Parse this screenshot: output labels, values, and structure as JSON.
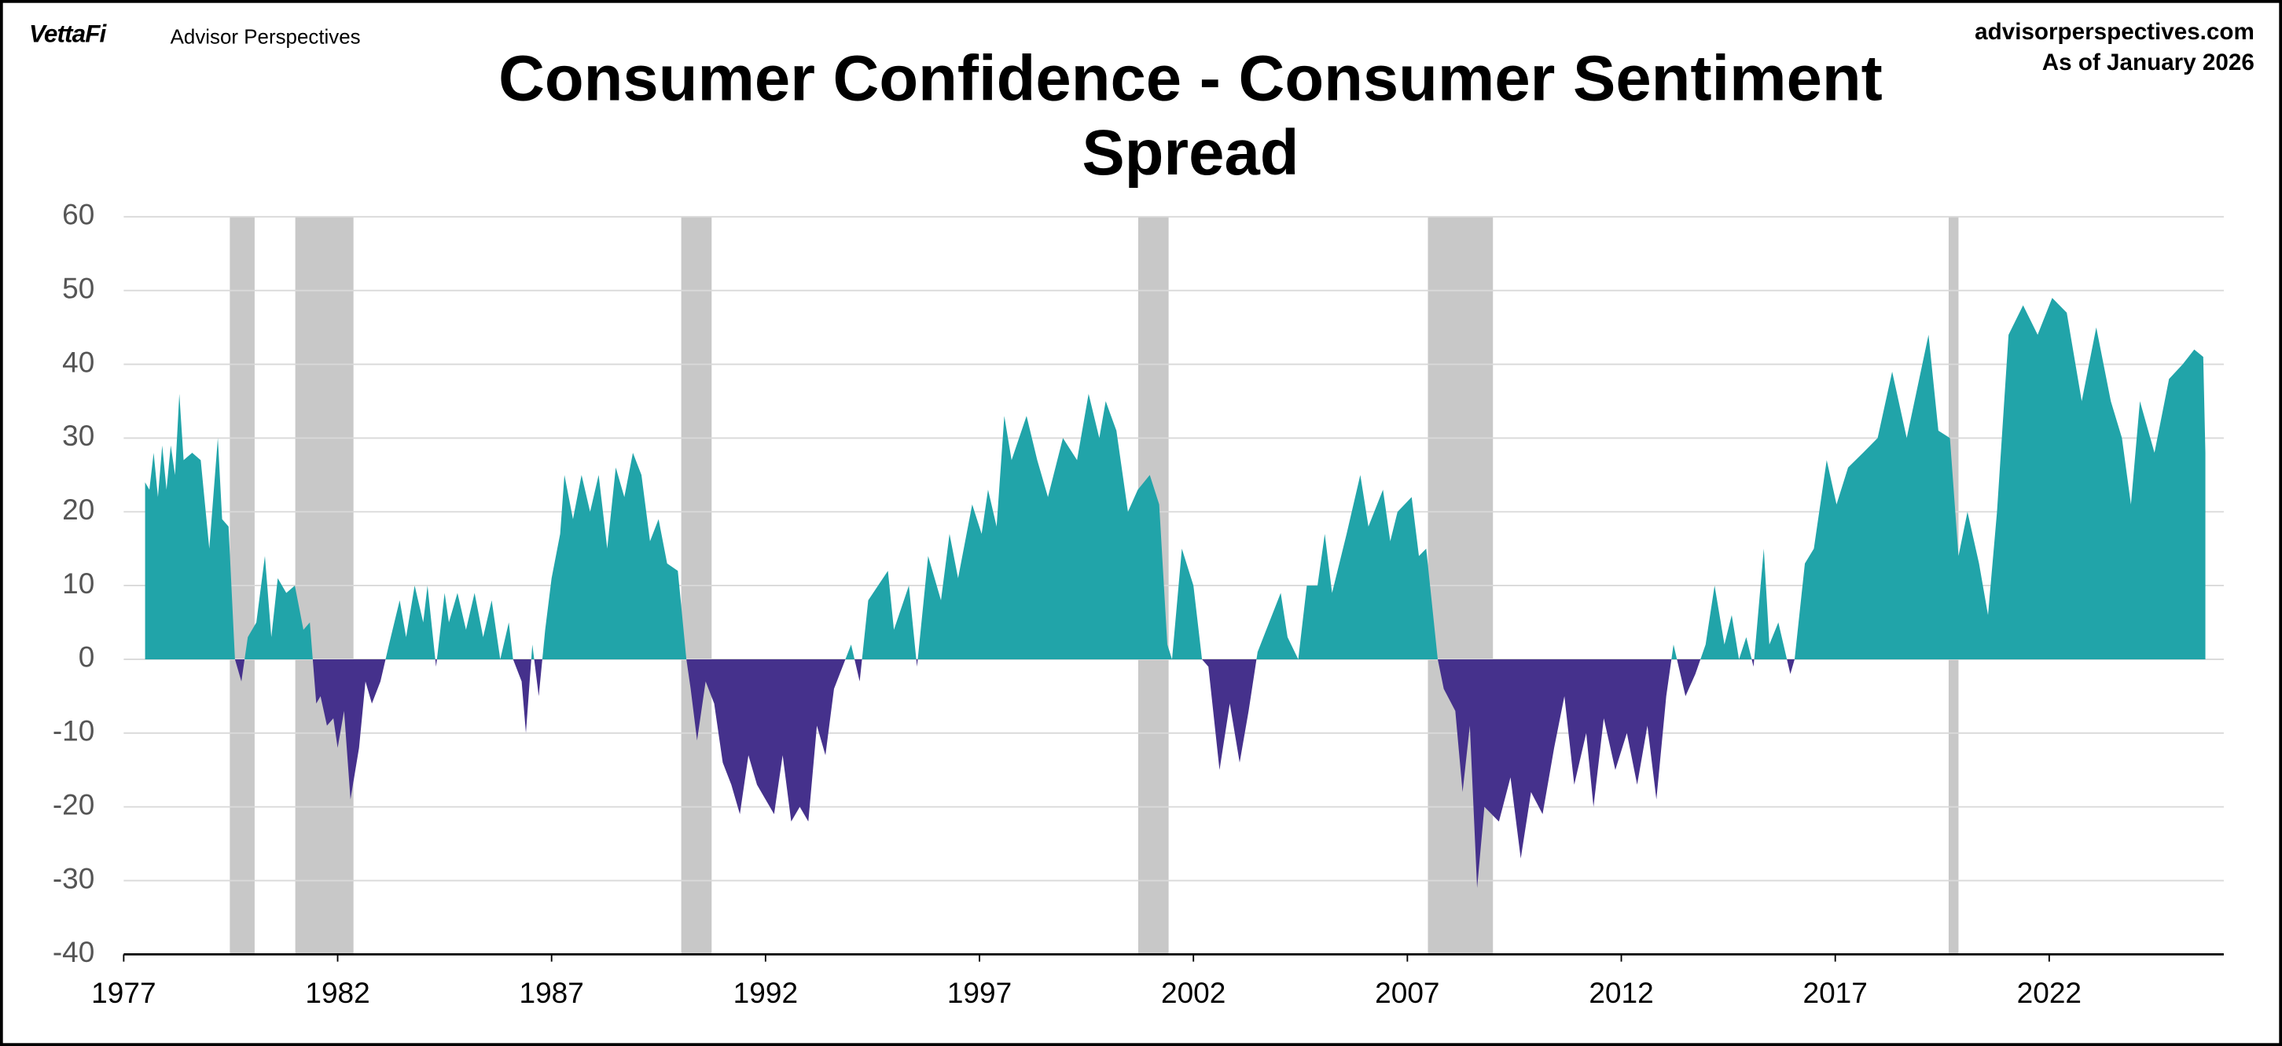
{
  "header": {
    "logo": "VettaFi",
    "brand": "Advisor Perspectives",
    "website": "advisorperspectives.com",
    "as_of": "As of January 2026"
  },
  "chart_data": {
    "type": "area",
    "title": "Consumer Confidence - Consumer Sentiment Spread",
    "positive_color": "#21a4a9",
    "negative_color": "#45318c",
    "recession_color": "#c8c8c8",
    "recessions": [
      [
        1979.48,
        1980.06
      ],
      [
        1981.01,
        1982.37
      ],
      [
        1990.03,
        1990.74
      ],
      [
        2000.71,
        2001.42
      ],
      [
        2007.48,
        2009.0
      ],
      [
        2019.65,
        2019.88
      ]
    ],
    "xlim": [
      1977,
      2026.08
    ],
    "xticks": [
      1977,
      1982,
      1987,
      1992,
      1997,
      2002,
      2007,
      2012,
      2017,
      2022
    ],
    "ylim": [
      -40,
      60
    ],
    "yticks": [
      -40,
      -30,
      -20,
      -10,
      0,
      10,
      20,
      30,
      40,
      50,
      60
    ],
    "grid": true,
    "x": [
      1977.5,
      1977.6,
      1977.7,
      1977.8,
      1977.9,
      1978.0,
      1978.1,
      1978.2,
      1978.3,
      1978.4,
      1978.6,
      1978.8,
      1979.0,
      1979.2,
      1979.3,
      1979.45,
      1979.6,
      1979.75,
      1979.9,
      1980.1,
      1980.3,
      1980.45,
      1980.6,
      1980.8,
      1981.0,
      1981.2,
      1981.35,
      1981.5,
      1981.6,
      1981.75,
      1981.9,
      1982.0,
      1982.15,
      1982.3,
      1982.5,
      1982.65,
      1982.8,
      1983.0,
      1983.2,
      1983.45,
      1983.6,
      1983.8,
      1984.0,
      1984.1,
      1984.3,
      1984.5,
      1984.6,
      1984.8,
      1985.0,
      1985.2,
      1985.4,
      1985.6,
      1985.8,
      1986.0,
      1986.1,
      1986.3,
      1986.4,
      1986.55,
      1986.7,
      1986.85,
      1987.0,
      1987.2,
      1987.3,
      1987.5,
      1987.7,
      1987.9,
      1988.1,
      1988.3,
      1988.5,
      1988.7,
      1988.9,
      1989.1,
      1989.3,
      1989.5,
      1989.7,
      1989.95,
      1990.15,
      1990.25,
      1990.4,
      1990.6,
      1990.8,
      1991.0,
      1991.2,
      1991.4,
      1991.6,
      1991.8,
      1992.0,
      1992.2,
      1992.4,
      1992.6,
      1992.8,
      1993.0,
      1993.2,
      1993.4,
      1993.6,
      1994.0,
      1994.2,
      1994.4,
      1994.86,
      1995.0,
      1995.35,
      1995.54,
      1995.8,
      1996.1,
      1996.3,
      1996.5,
      1996.83,
      1997.05,
      1997.2,
      1997.4,
      1997.58,
      1997.75,
      1998.1,
      1998.35,
      1998.6,
      1998.95,
      1999.28,
      1999.55,
      1999.8,
      1999.95,
      2000.2,
      2000.47,
      2000.7,
      2000.98,
      2001.2,
      2001.39,
      2001.5,
      2001.73,
      2002.0,
      2002.2,
      2002.35,
      2002.61,
      2002.85,
      2003.08,
      2003.29,
      2003.5,
      2004.04,
      2004.2,
      2004.45,
      2004.65,
      2004.9,
      2005.07,
      2005.24,
      2005.58,
      2005.9,
      2006.09,
      2006.43,
      2006.6,
      2006.77,
      2007.1,
      2007.27,
      2007.44,
      2007.71,
      2007.85,
      2008.12,
      2008.29,
      2008.46,
      2008.63,
      2008.8,
      2009.14,
      2009.41,
      2009.65,
      2009.89,
      2010.16,
      2010.43,
      2010.67,
      2010.9,
      2011.18,
      2011.35,
      2011.59,
      2011.86,
      2012.13,
      2012.37,
      2012.61,
      2012.82,
      2013.05,
      2013.22,
      2013.5,
      2013.73,
      2013.97,
      2014.18,
      2014.41,
      2014.58,
      2014.75,
      2014.92,
      2015.09,
      2015.33,
      2015.46,
      2015.67,
      2015.95,
      2016.05,
      2016.29,
      2016.5,
      2016.8,
      2017.03,
      2017.3,
      2017.65,
      2017.99,
      2018.33,
      2018.67,
      2019.18,
      2019.41,
      2019.68,
      2019.88,
      2020.09,
      2020.36,
      2020.57,
      2020.78,
      2021.05,
      2021.39,
      2021.73,
      2022.07,
      2022.41,
      2022.76,
      2023.1,
      2023.44,
      2023.7,
      2023.91,
      2024.12,
      2024.46,
      2024.8,
      2025.12,
      2025.39,
      2025.6,
      2025.65
    ],
    "values": [
      24,
      23,
      28,
      22,
      29,
      23,
      29,
      25,
      36,
      27,
      28,
      27,
      15,
      30,
      19,
      18,
      0,
      -3,
      3,
      5,
      14,
      3,
      11,
      9,
      10,
      4,
      5,
      -6,
      -5,
      -9,
      -8,
      -12,
      -7,
      -19,
      -12,
      -3,
      -6,
      -3,
      2,
      8,
      3,
      10,
      5,
      10,
      -1,
      9,
      5,
      9,
      4,
      9,
      3,
      8,
      0,
      5,
      0,
      -3,
      -10,
      2,
      -5,
      4,
      11,
      17,
      25,
      19,
      25,
      20,
      25,
      15,
      26,
      22,
      28,
      25,
      16,
      19,
      13,
      12,
      0,
      -4,
      -11,
      -3,
      -6,
      -14,
      -17,
      -21,
      -13,
      -17,
      -19,
      -21,
      -13,
      -22,
      -20,
      -22,
      -9,
      -13,
      -4,
      2,
      -3,
      8,
      12,
      4,
      10,
      -1,
      14,
      8,
      17,
      11,
      21,
      17,
      23,
      18,
      33,
      27,
      33,
      27,
      22,
      30,
      27,
      36,
      30,
      35,
      31,
      20,
      23,
      25,
      21,
      2,
      0,
      15,
      10,
      0,
      -1,
      -15,
      -6,
      -14,
      -7,
      1,
      9,
      3,
      0,
      10,
      10,
      17,
      9,
      17,
      25,
      18,
      23,
      16,
      20,
      22,
      14,
      15,
      0,
      -4,
      -7,
      -18,
      -9,
      -31,
      -20,
      -22,
      -16,
      -27,
      -18,
      -21,
      -12,
      -5,
      -17,
      -10,
      -20,
      -8,
      -15,
      -10,
      -17,
      -9,
      -19,
      -5,
      2,
      -5,
      -2,
      2,
      10,
      2,
      6,
      0,
      3,
      -1,
      15,
      2,
      5,
      -2,
      0,
      13,
      15,
      27,
      21,
      26,
      28,
      30,
      39,
      30,
      44,
      31,
      30,
      14,
      20,
      13,
      6,
      20,
      44,
      48,
      44,
      49,
      47,
      35,
      45,
      35,
      30,
      21,
      35,
      28,
      38,
      40,
      42,
      41,
      28
    ]
  }
}
